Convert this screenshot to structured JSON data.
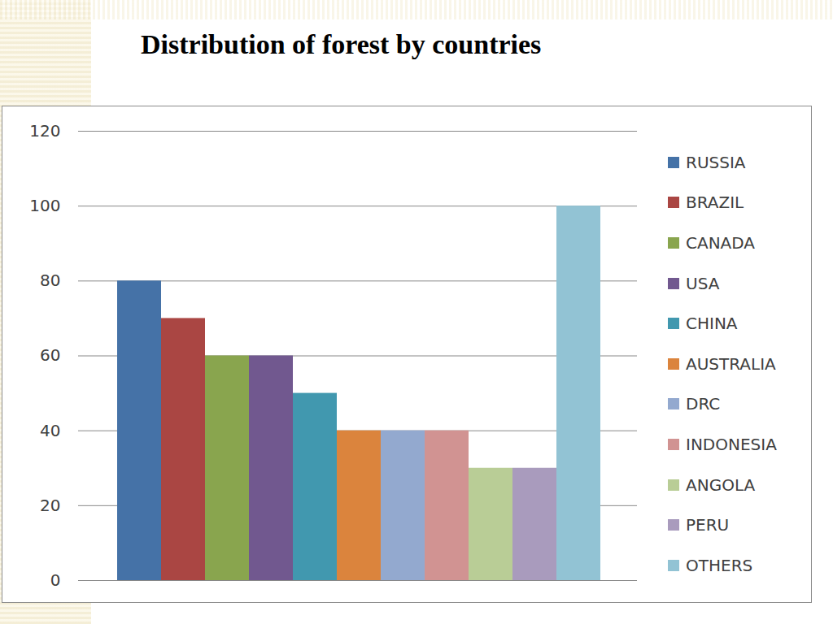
{
  "chart_data": {
    "type": "bar",
    "title": "Distribution of forest by countries",
    "categories": [
      "RUSSIA",
      "BRAZIL",
      "CANADA",
      "USA",
      "CHINA",
      "AUSTRALIA",
      "DRC",
      "INDONESIA",
      "ANGOLA",
      "PERU",
      "OTHERS"
    ],
    "values": [
      80,
      70,
      60,
      60,
      50,
      40,
      40,
      40,
      30,
      30,
      100
    ],
    "colors": [
      "#4572a7",
      "#aa4643",
      "#89a54e",
      "#71588f",
      "#4198af",
      "#db843d",
      "#93a9cf",
      "#d19392",
      "#b9cd96",
      "#a99bbd",
      "#92c3d4"
    ],
    "ylim": [
      0,
      120
    ],
    "yticks": [
      0,
      20,
      40,
      60,
      80,
      100,
      120
    ],
    "grid": true,
    "legend": "right",
    "tick_labels": "y"
  }
}
